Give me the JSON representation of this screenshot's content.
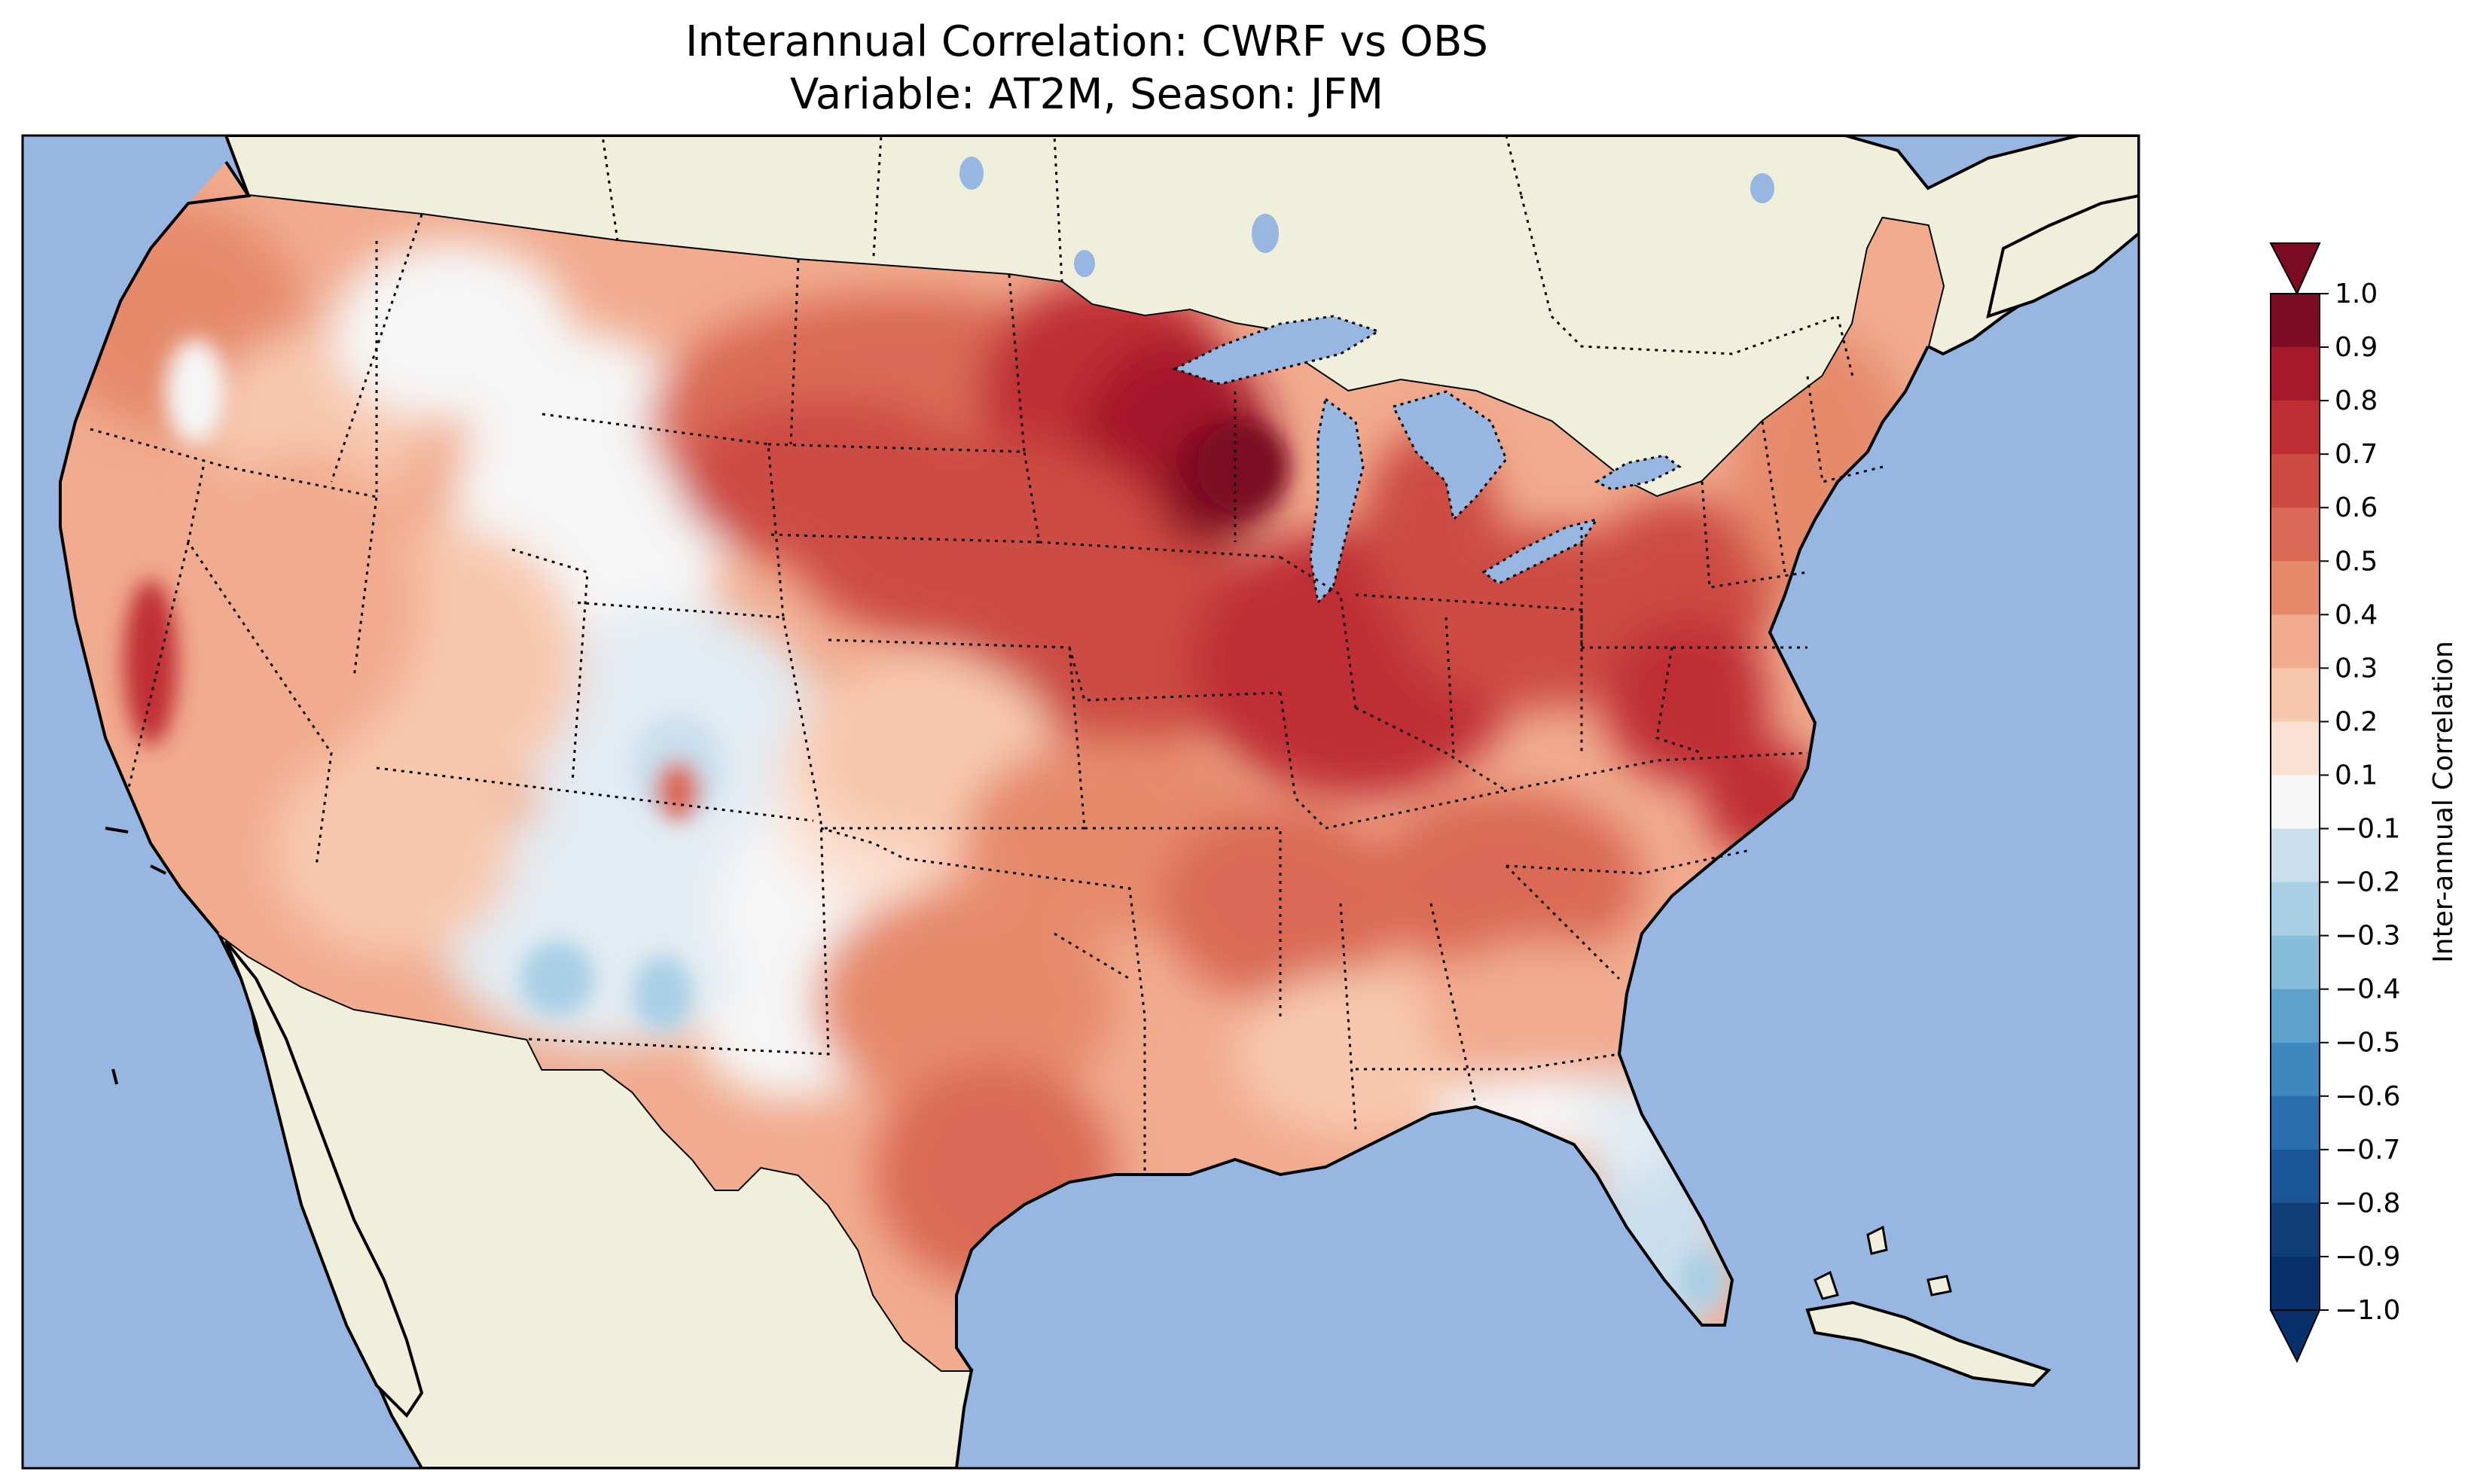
{
  "title": {
    "line1": "Interannual Correlation: CWRF vs OBS",
    "line2": "Variable: AT2M, Season: JFM"
  },
  "map": {
    "region": "Contiguous United States",
    "ocean_color": "#97b6e1",
    "land_color": "#efefdb",
    "border_style": "dotted state boundaries, solid coastlines"
  },
  "colorbar": {
    "label": "Inter-annual Correlation",
    "ticks": [
      "1.0",
      "0.9",
      "0.8",
      "0.7",
      "0.6",
      "0.5",
      "0.4",
      "0.3",
      "0.2",
      "0.1",
      "−0.1",
      "−0.2",
      "−0.3",
      "−0.4",
      "−0.5",
      "−0.6",
      "−0.7",
      "−0.8",
      "−0.9",
      "−1.0"
    ],
    "colors_top_to_bottom": [
      "#7b0c24",
      "#a6192b",
      "#bf2e34",
      "#cc4b42",
      "#da6a55",
      "#e68a6c",
      "#f1ab8e",
      "#f7c8ae",
      "#fbe1d2",
      "#f6f6f6",
      "#e3ecf3",
      "#cadfee",
      "#a9cfe5",
      "#86bdda",
      "#5fa3cd",
      "#3e88bf",
      "#2a6eae",
      "#1a5597",
      "#0f3e77",
      "#08306b"
    ],
    "extend": "both"
  },
  "chart_data": {
    "type": "heatmap",
    "title": "Interannual Correlation: CWRF vs OBS",
    "subtitle": "Variable: AT2M, Season: JFM",
    "colorbar_label": "Inter-annual Correlation",
    "levels": [
      -1.0,
      -0.9,
      -0.8,
      -0.7,
      -0.6,
      -0.5,
      -0.4,
      -0.3,
      -0.2,
      -0.1,
      0.1,
      0.2,
      0.3,
      0.4,
      0.5,
      0.6,
      0.7,
      0.8,
      0.9,
      1.0
    ],
    "value_range": [
      -1.0,
      1.0
    ]
  }
}
